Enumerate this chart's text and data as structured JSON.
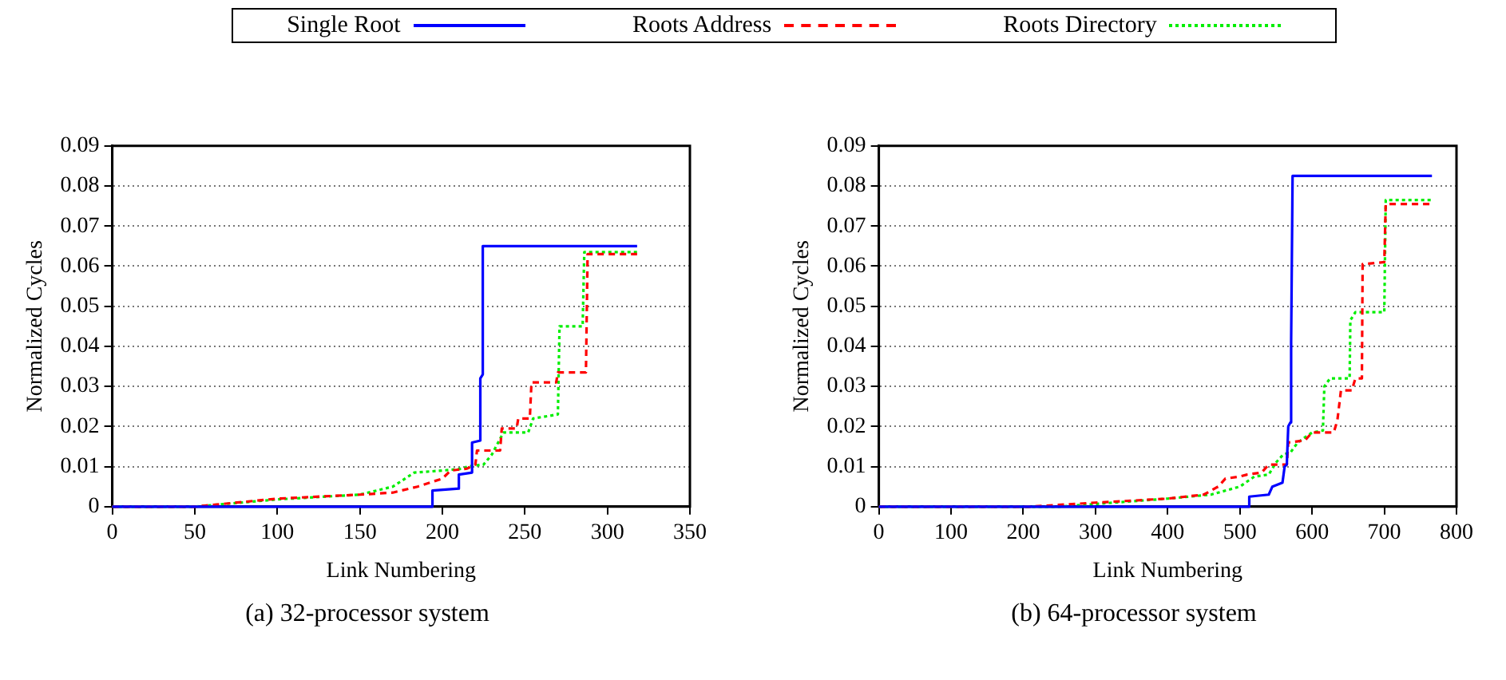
{
  "chart_data": [
    {
      "type": "step",
      "xlabel": "Link Numbering",
      "ylabel": "Normalized Cycles",
      "annotations": [
        "(a) 32-processor system"
      ],
      "xlim": [
        0,
        350
      ],
      "xticks": [
        0,
        50,
        100,
        150,
        200,
        250,
        300,
        350
      ],
      "ylim": [
        0,
        0.09
      ],
      "yticks": [
        0,
        0.01,
        0.02,
        0.03,
        0.04,
        0.05,
        0.06,
        0.07,
        0.08,
        0.09
      ],
      "grid": "y",
      "legend": "top",
      "series": [
        {
          "name": "Single Root",
          "color": "#0000ff",
          "line_style": "solid",
          "x": [
            0,
            194,
            194,
            210,
            210,
            218,
            218,
            223,
            223,
            224.5,
            224.5,
            318
          ],
          "values": [
            0,
            0,
            0.004,
            0.0045,
            0.008,
            0.0085,
            0.016,
            0.0165,
            0.032,
            0.033,
            0.065,
            0.065
          ]
        },
        {
          "name": "Roots Address",
          "color": "#ff0000",
          "line_style": "dashed",
          "x": [
            0,
            50,
            100,
            150,
            170,
            185,
            200,
            205,
            215,
            220,
            221,
            235,
            236,
            245,
            246,
            253,
            254,
            269,
            270,
            287,
            288,
            318
          ],
          "values": [
            0,
            0,
            0.002,
            0.003,
            0.0035,
            0.005,
            0.007,
            0.009,
            0.0095,
            0.0105,
            0.014,
            0.014,
            0.0195,
            0.0195,
            0.022,
            0.022,
            0.031,
            0.031,
            0.0335,
            0.0335,
            0.063,
            0.063
          ]
        },
        {
          "name": "Roots Directory",
          "color": "#00ee00",
          "line_style": "dotted",
          "x": [
            0,
            50,
            100,
            150,
            170,
            183,
            200,
            213,
            215,
            225,
            230,
            237,
            252,
            255,
            270,
            271,
            285,
            286,
            318
          ],
          "values": [
            0,
            0,
            0.0018,
            0.003,
            0.005,
            0.0085,
            0.009,
            0.0095,
            0.01,
            0.0105,
            0.013,
            0.0185,
            0.0185,
            0.022,
            0.023,
            0.045,
            0.045,
            0.0635,
            0.0635
          ]
        }
      ]
    },
    {
      "type": "step",
      "xlabel": "Link Numbering",
      "ylabel": "Normalized Cycles",
      "annotations": [
        "(b) 64-processor system"
      ],
      "xlim": [
        0,
        800
      ],
      "xticks": [
        0,
        100,
        200,
        300,
        400,
        500,
        600,
        700,
        800
      ],
      "ylim": [
        0,
        0.09
      ],
      "yticks": [
        0,
        0.01,
        0.02,
        0.03,
        0.04,
        0.05,
        0.06,
        0.07,
        0.08,
        0.09
      ],
      "grid": "y",
      "legend": "top",
      "series": [
        {
          "name": "Single Root",
          "color": "#0000ff",
          "line_style": "solid",
          "x": [
            0,
            513,
            513,
            540,
            545,
            559,
            562,
            565,
            567,
            570,
            571,
            573,
            766
          ],
          "values": [
            0,
            0,
            0.0025,
            0.003,
            0.005,
            0.006,
            0.01,
            0.0105,
            0.02,
            0.021,
            0.041,
            0.0825,
            0.0825
          ]
        },
        {
          "name": "Roots Address",
          "color": "#ff0000",
          "line_style": "dashed",
          "x": [
            0,
            210,
            300,
            400,
            450,
            470,
            480,
            500,
            510,
            530,
            540,
            565,
            567,
            590,
            600,
            630,
            635,
            640,
            655,
            660,
            669,
            670,
            700,
            702,
            766
          ],
          "values": [
            0,
            0,
            0.001,
            0.002,
            0.003,
            0.005,
            0.007,
            0.0075,
            0.008,
            0.0085,
            0.0105,
            0.0105,
            0.016,
            0.0165,
            0.0185,
            0.0185,
            0.0215,
            0.029,
            0.029,
            0.032,
            0.032,
            0.0605,
            0.061,
            0.0755,
            0.0755
          ]
        },
        {
          "name": "Roots Directory",
          "color": "#00ee00",
          "line_style": "dotted",
          "x": [
            0,
            250,
            400,
            460,
            500,
            520,
            540,
            550,
            560,
            570,
            580,
            600,
            615,
            617,
            625,
            652,
            653,
            660,
            700,
            702,
            766
          ],
          "values": [
            0,
            0,
            0.002,
            0.003,
            0.005,
            0.0075,
            0.008,
            0.011,
            0.013,
            0.0135,
            0.016,
            0.0185,
            0.019,
            0.03,
            0.032,
            0.032,
            0.0465,
            0.0485,
            0.0485,
            0.0765,
            0.0765
          ]
        }
      ]
    }
  ]
}
